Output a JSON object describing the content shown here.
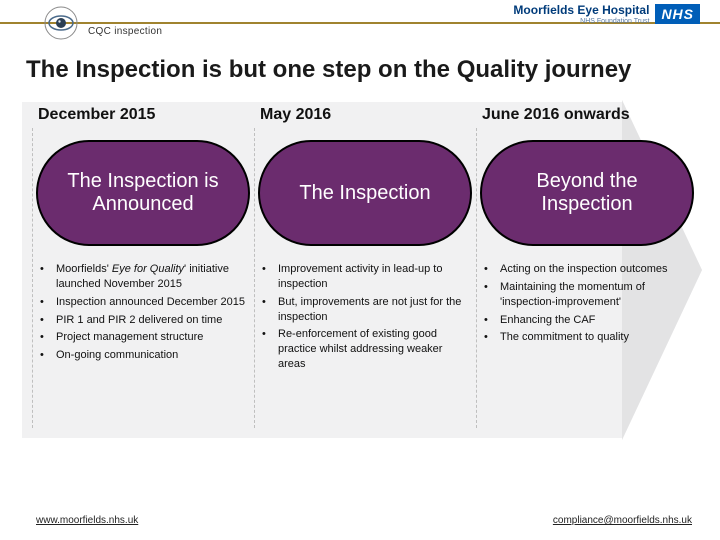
{
  "header": {
    "tag_label": "CQC inspection",
    "org_name": "Moorfields Eye Hospital",
    "org_sub": "NHS Foundation Trust",
    "nhs_label": "NHS",
    "bar_color": "#a0832f",
    "nhs_bg": "#005EB8"
  },
  "title": "The Inspection is but one step on the Quality journey",
  "arrow": {
    "shaft_color": "#f1f1f2",
    "head_color": "#e3e3e4"
  },
  "columns": {
    "c1": {
      "heading": "December  2015",
      "pill": "The Inspection is Announced",
      "bullets": [
        "Moorfields' <span class=\"italic\">Eye for Quality</span>' initiative launched November 2015",
        "Inspection announced December 2015",
        "PIR 1 and PIR 2 delivered on time",
        "Project management structure",
        "On-going communication"
      ]
    },
    "c2": {
      "heading": "May 2016",
      "pill": "The Inspection",
      "bullets": [
        "Improvement activity in lead-up to inspection",
        "But, improvements are not just for the inspection",
        "Re-enforcement of existing good practice whilst addressing weaker areas"
      ]
    },
    "c3": {
      "heading": "June 2016 onwards",
      "pill": "Beyond the Inspection",
      "bullets": [
        "Acting on the inspection outcomes",
        "Maintaining the momentum of 'inspection-improvement'",
        "Enhancing the CAF",
        "The commitment to quality"
      ]
    }
  },
  "pill_style": {
    "bg": "#6B2C6E",
    "border": "#000000",
    "text": "#ffffff",
    "font_size": 20
  },
  "footer": {
    "left": "www.moorfields.nhs.uk",
    "right": "compliance@moorfields.nhs.uk"
  }
}
